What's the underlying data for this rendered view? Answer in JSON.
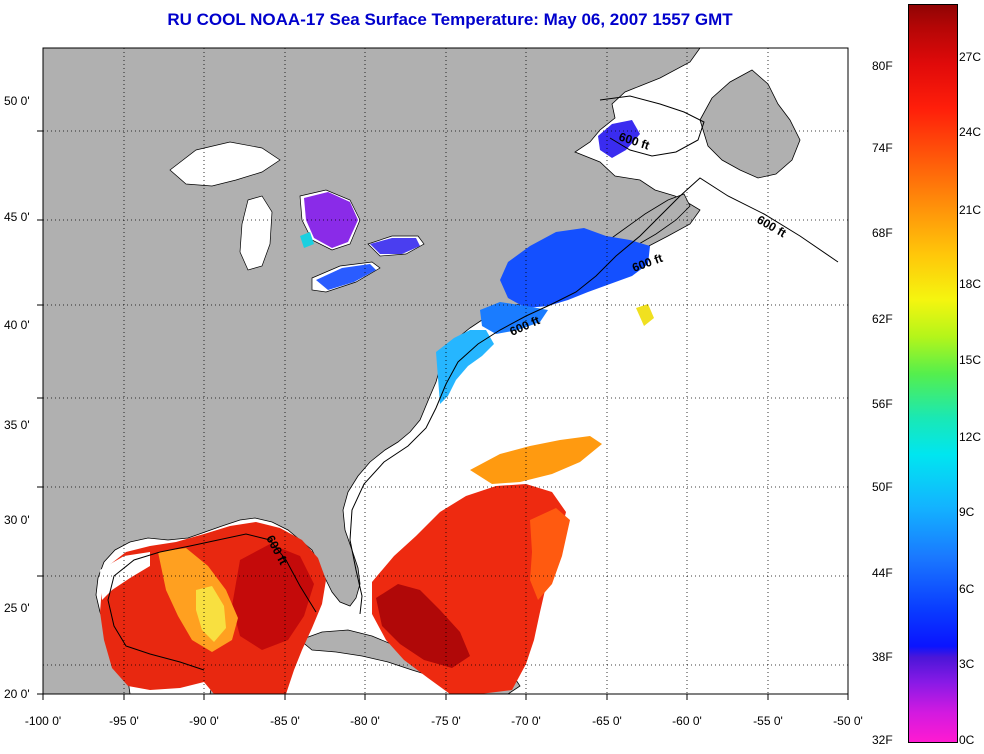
{
  "title": "RU COOL  NOAA-17  Sea Surface Temperature:  May 06, 2007 1557 GMT",
  "x_ticks": [
    "-100 0'",
    "-95 0'",
    "-90 0'",
    "-85 0'",
    "-80 0'",
    "-75 0'",
    "-70 0'",
    "-65 0'",
    "-60 0'",
    "-55 0'",
    "-50 0'"
  ],
  "y_ticks": [
    "50 0'",
    "45 0'",
    "40 0'",
    "35 0'",
    "30 0'",
    "25 0'",
    "20 0'"
  ],
  "isobath_label": "600 ft",
  "colorbar": {
    "fahrenheit": [
      "80F",
      "74F",
      "68F",
      "62F",
      "56F",
      "50F",
      "44F",
      "38F",
      "32F"
    ],
    "celsius": [
      "27C",
      "24C",
      "21C",
      "18C",
      "15C",
      "12C",
      "9C",
      "6C",
      "3C",
      "0C"
    ]
  },
  "colors": {
    "land": "#b0b0b0",
    "ocean_nodata": "#ffffff",
    "title": "#0000cc",
    "grid": "#000000"
  }
}
